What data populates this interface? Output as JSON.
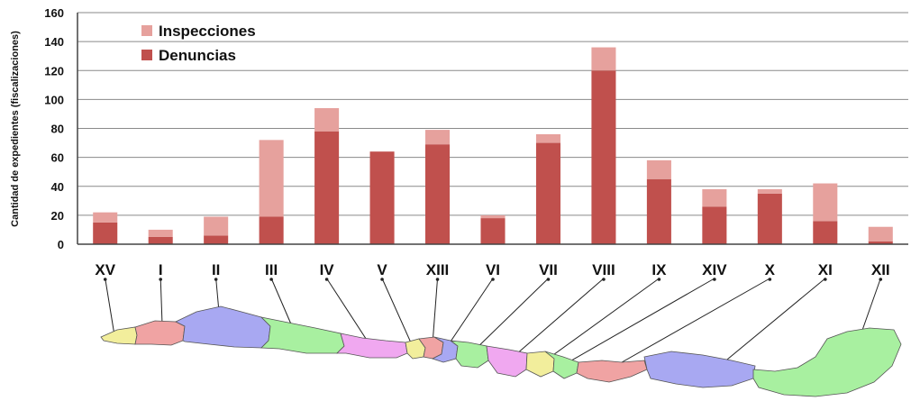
{
  "chart_data": {
    "type": "bar",
    "stacked": true,
    "title": "",
    "xlabel": "",
    "ylabel": "Cantidad de expedientes (fiscalizaciones)",
    "ylim": [
      0,
      160
    ],
    "yticks": [
      "0",
      "20",
      "40",
      "60",
      "80",
      "100",
      "120",
      "140",
      "160"
    ],
    "grid": true,
    "legend_position": "top-left",
    "categories": [
      "XV",
      "I",
      "II",
      "III",
      "IV",
      "V",
      "XIII",
      "VI",
      "VII",
      "VIII",
      "IX",
      "XIV",
      "X",
      "XI",
      "XII"
    ],
    "series": [
      {
        "name": "Denuncias",
        "color": "#c0504d",
        "values": [
          15,
          5,
          6,
          19,
          78,
          64,
          69,
          18,
          70,
          120,
          45,
          26,
          35,
          16,
          2
        ]
      },
      {
        "name": "Inspecciones",
        "color": "#e6a19d",
        "values": [
          7,
          5,
          13,
          53,
          16,
          0,
          10,
          2,
          6,
          16,
          13,
          12,
          3,
          26,
          10
        ]
      }
    ]
  },
  "map": {
    "region_colors": [
      "#f2ee9c",
      "#f0a3a3",
      "#a8a8f2",
      "#a8f0a0",
      "#f0a8f0"
    ],
    "outline_color": "#555555"
  }
}
